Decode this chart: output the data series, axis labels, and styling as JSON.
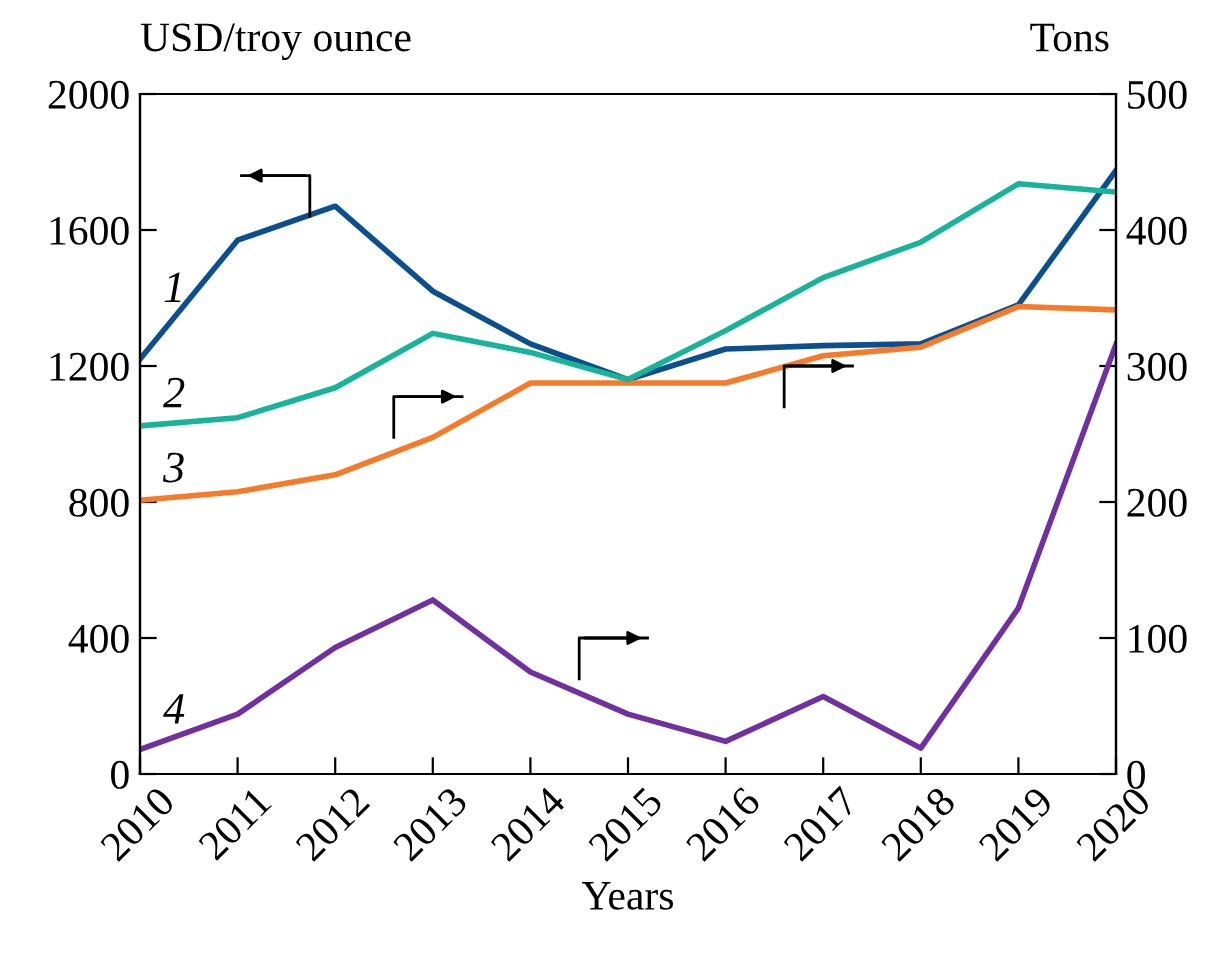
{
  "chart_data": {
    "type": "line",
    "xlabel": "Years",
    "ylabel": "USD/troy ounce",
    "y2label": "Tons",
    "x": [
      2010,
      2011,
      2012,
      2013,
      2014,
      2015,
      2016,
      2017,
      2018,
      2019,
      2020
    ],
    "xlim": [
      2010,
      2020
    ],
    "xticks": [
      2010,
      2011,
      2012,
      2013,
      2014,
      2015,
      2016,
      2017,
      2018,
      2019,
      2020
    ],
    "ylim": [
      0,
      2000
    ],
    "yticks": [
      0,
      400,
      800,
      1200,
      1600,
      2000
    ],
    "y2lim": [
      0,
      500
    ],
    "y2ticks": [
      0,
      100,
      200,
      300,
      400,
      500
    ],
    "grid": false,
    "legend": false,
    "marker": "none",
    "line_style": "solid",
    "series": [
      {
        "color": "#0b4f8f",
        "axis": "y",
        "values": [
          1220,
          1570,
          1670,
          1420,
          1265,
          1160,
          1250,
          1260,
          1265,
          1380,
          1775
        ]
      },
      {
        "color": "#17b39a",
        "axis": "y2",
        "values": [
          256,
          262,
          284,
          324,
          310,
          290,
          326,
          365,
          391,
          434,
          428
        ]
      },
      {
        "color": "#f57a2a",
        "axis": "y",
        "values": [
          805,
          830,
          880,
          990,
          1150,
          1150,
          1150,
          1230,
          1255,
          1375,
          1365
        ]
      },
      {
        "color": "#7030a0",
        "axis": "y2",
        "values": [
          18,
          44,
          93,
          128,
          75,
          44,
          24,
          57,
          19,
          122,
          316
        ]
      }
    ],
    "annotations": [
      "1",
      "2",
      "3",
      "4"
    ]
  }
}
